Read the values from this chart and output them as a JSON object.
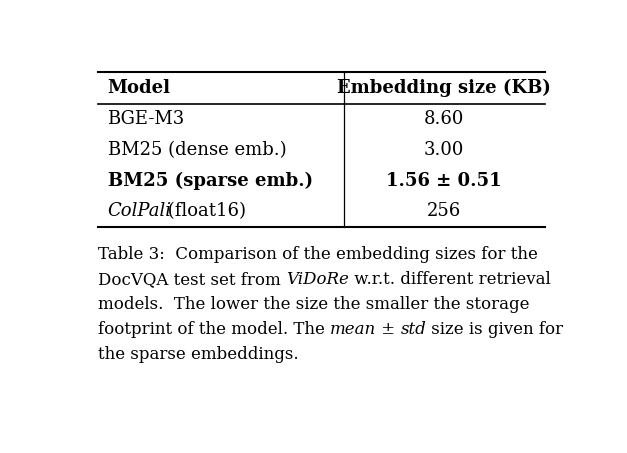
{
  "col_headers": [
    "Model",
    "Embedding size (KB)"
  ],
  "rows": [
    [
      "BGE-M3",
      "8.60"
    ],
    [
      "BM25 (dense emb.)",
      "3.00"
    ],
    [
      "BM25 (sparse emb.)",
      "1.56 ± 0.51"
    ],
    [
      "ColPali (float16)",
      "256"
    ]
  ],
  "bold_row": 2,
  "italic_model_row": 3,
  "caption_lines": [
    [
      "Table 3:  Comparison of the embedding sizes for the"
    ],
    [
      "DocVQA test set from ",
      "ViDoRe",
      " w.r.t. different retrieval"
    ],
    [
      "models.  The lower the size the smaller the storage"
    ],
    [
      "footprint of the model. The ",
      "mean",
      " ± ",
      "std",
      " size is given for"
    ],
    [
      "the sparse embeddings."
    ]
  ],
  "caption_italic": [
    "ViDoRe",
    "mean",
    "std"
  ],
  "bg_color": "#ffffff",
  "text_color": "#000000",
  "fontsize_table": 13,
  "fontsize_caption": 12,
  "col_split": 0.55
}
